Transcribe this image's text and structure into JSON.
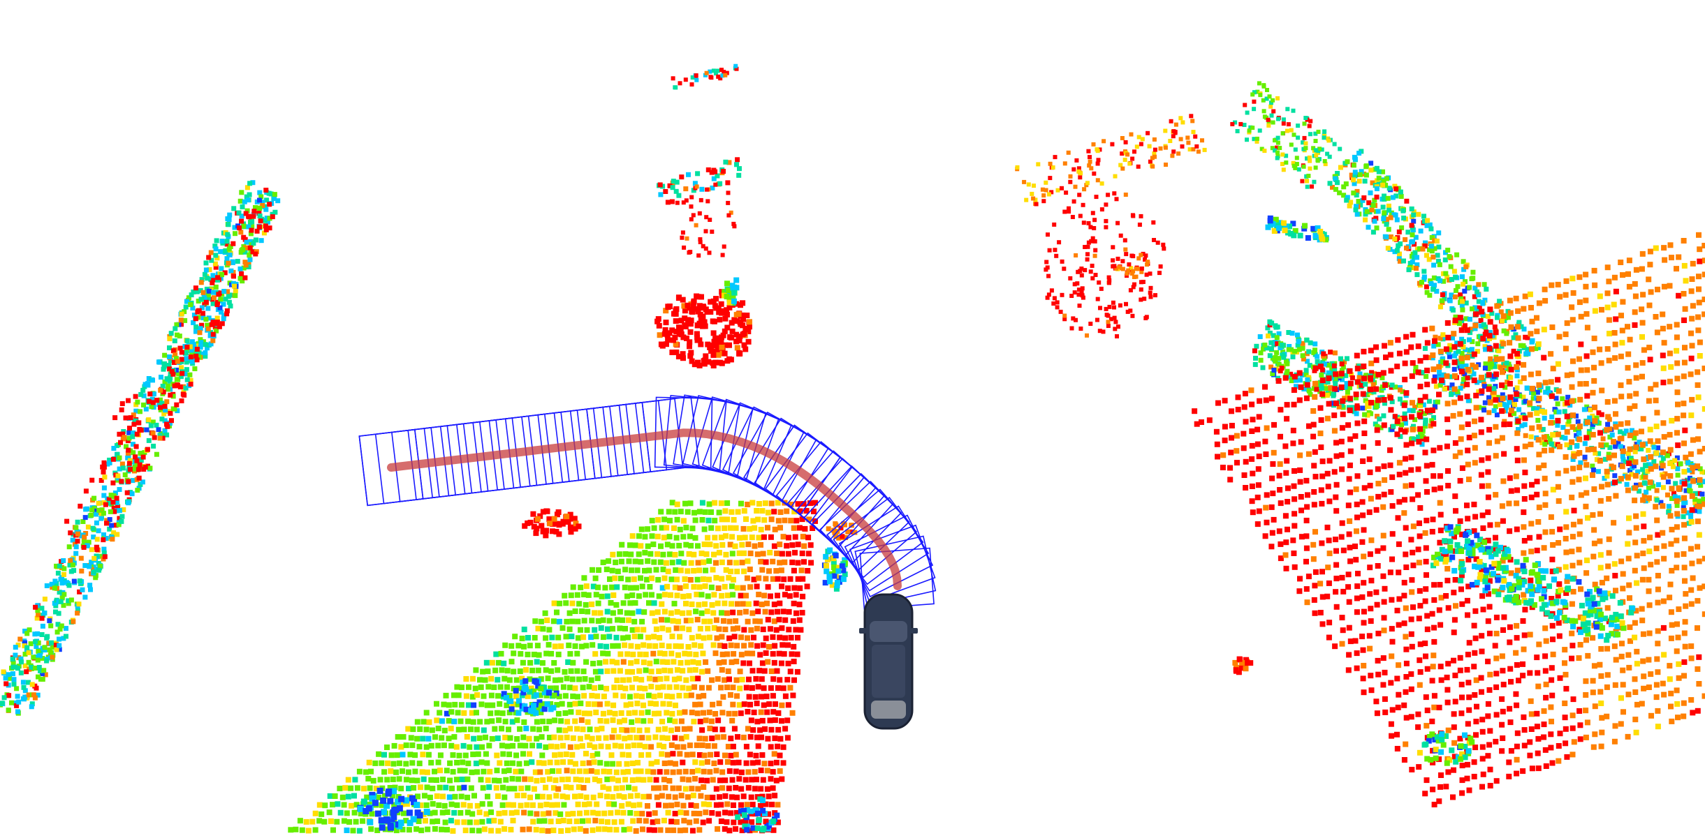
{
  "scene": {
    "background_color": "#ffffff",
    "colors": {
      "near": "#ff0000",
      "low": "#ff8000",
      "mid_low": "#ffdd00",
      "mid": "#66ee00",
      "mid_high": "#00e0a0",
      "high": "#00c8ff",
      "top": "#1040ff",
      "footprint_outline": "#1a1aff",
      "trajectory": "#c83c3c",
      "vehicle_body": "#2e3a52",
      "vehicle_glass": "#8a8f98"
    },
    "vehicle_icon": "car-top-view-icon",
    "trajectory": {
      "waypoint_count": 44,
      "footprint_count": 46
    },
    "point_clusters": [
      {
        "name": "left-curb-strip"
      },
      {
        "name": "upper-center-pole-cluster"
      },
      {
        "name": "center-left-ground-sweep"
      },
      {
        "name": "small-object-left"
      },
      {
        "name": "small-object-near-vehicle"
      },
      {
        "name": "right-upper-vegetation"
      },
      {
        "name": "right-lower-ground-sweep"
      },
      {
        "name": "right-hedge-band"
      }
    ]
  }
}
